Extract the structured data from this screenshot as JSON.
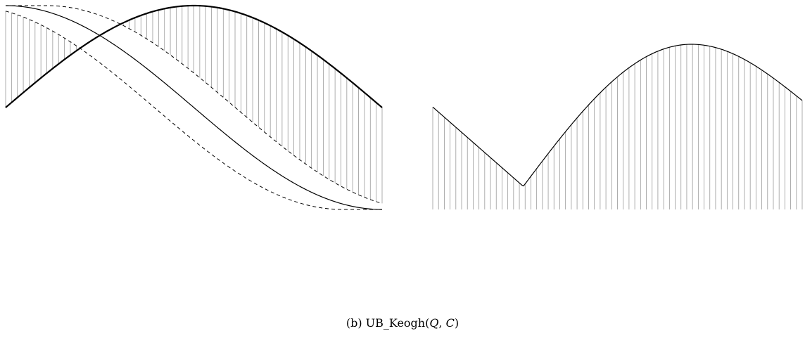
{
  "caption": {
    "label": "(b) UB_Keogh(",
    "q": "Q",
    "sep": ", ",
    "c": "C",
    "close": ")"
  },
  "colors": {
    "stroke": "#000000",
    "hatch": "#999999"
  },
  "panels": [
    {
      "id": "envelope-panel",
      "series": [
        "query-curve-Q",
        "candidate-curve-C",
        "upper-envelope",
        "lower-envelope"
      ],
      "hatch_count": 64
    },
    {
      "id": "distance-panel",
      "series": [
        "lower-bound-distance-curve"
      ],
      "hatch_count": 64
    }
  ]
}
